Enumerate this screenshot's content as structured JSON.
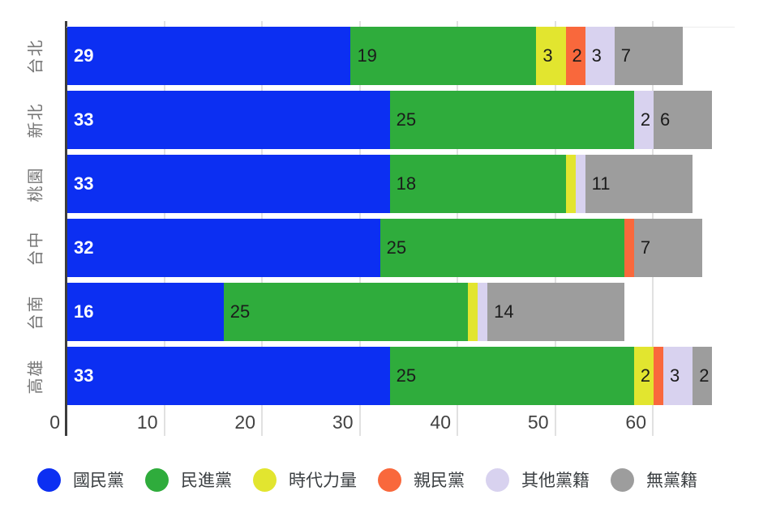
{
  "chart_data": {
    "type": "bar",
    "orientation": "horizontal",
    "stacked": true,
    "title": "",
    "categories": [
      "台北",
      "新北",
      "桃園",
      "台中",
      "台南",
      "高雄"
    ],
    "series": [
      {
        "name": "國民黨",
        "color": "#0c2ff2",
        "values": [
          29,
          33,
          33,
          32,
          16,
          33
        ]
      },
      {
        "name": "民進黨",
        "color": "#2fac3c",
        "values": [
          19,
          25,
          18,
          25,
          25,
          25
        ]
      },
      {
        "name": "時代力量",
        "color": "#e2e52f",
        "values": [
          3,
          0,
          1,
          0,
          1,
          2
        ]
      },
      {
        "name": "親民黨",
        "color": "#f9683c",
        "values": [
          2,
          0,
          0,
          1,
          0,
          1
        ]
      },
      {
        "name": "其他黨籍",
        "color": "#d8d2ef",
        "values": [
          3,
          2,
          1,
          0,
          1,
          3
        ]
      },
      {
        "name": "無黨籍",
        "color": "#9d9d9d",
        "values": [
          7,
          6,
          11,
          7,
          14,
          2
        ]
      }
    ],
    "totals": [
      63,
      66,
      64,
      65,
      57,
      66
    ],
    "x_ticks": [
      "0",
      "10",
      "20",
      "30",
      "40",
      "50",
      "60"
    ],
    "xlim": [
      0,
      69
    ],
    "grid": true,
    "legend_position": "bottom",
    "label_threshold": 2
  },
  "style": {
    "background": "#ffffff",
    "axis_line_color": "#3d3d3d",
    "gridline_color": "#e1e1e1",
    "tick_label_color": "#424242",
    "category_label_color": "#757575",
    "value_label_light": "#ffffff",
    "value_label_dark": "#1b1b1b",
    "legend_text_color": "#3c4043"
  }
}
